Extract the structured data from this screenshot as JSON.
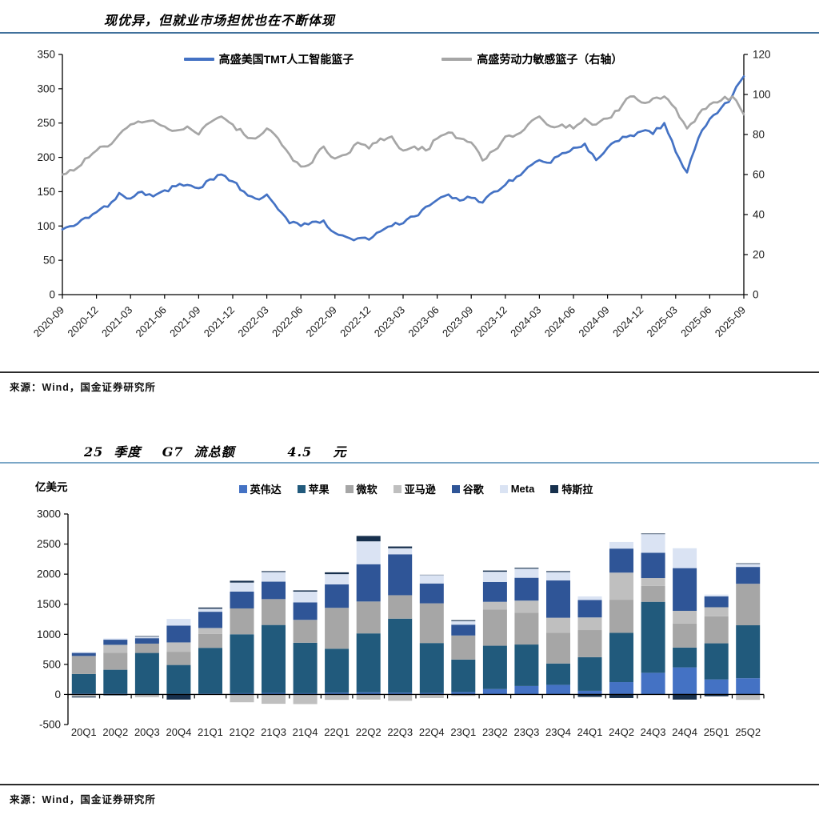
{
  "page": {
    "title1": "现优异，但就业市场担忧也在不断体现",
    "title2": "25  季度    G7  流总额          4.5    元",
    "source1": "来源：Wind，国金证券研究所",
    "source2": "来源：Wind，国金证券研究所",
    "accent_color": "#41719C"
  },
  "chart_data": [
    {
      "type": "line",
      "legend_position": "top",
      "grid": false,
      "x_months": 61,
      "x_tick_every": 3,
      "x_tick_labels": [
        "2020-09",
        "2020-12",
        "2021-03",
        "2021-06",
        "2021-09",
        "2021-12",
        "2022-03",
        "2022-06",
        "2022-09",
        "2022-12",
        "2023-03",
        "2023-06",
        "2023-09",
        "2023-12",
        "2024-03",
        "2024-06",
        "2024-09",
        "2024-12",
        "2025-03",
        "2025-06",
        "2025-09"
      ],
      "ylim_left": [
        0,
        350
      ],
      "ytick_step_left": 50,
      "ylim_right": [
        0,
        120
      ],
      "ytick_step_right": 20,
      "series": [
        {
          "name": "高盛美国TMT人工智能篮子",
          "axis": "left",
          "color": "#4472C4",
          "values": [
            95,
            100,
            112,
            120,
            128,
            148,
            140,
            150,
            143,
            152,
            158,
            160,
            155,
            168,
            175,
            165,
            150,
            140,
            146,
            124,
            104,
            100,
            106,
            108,
            90,
            84,
            82,
            80,
            92,
            100,
            104,
            114,
            128,
            138,
            146,
            137,
            141,
            134,
            150,
            160,
            172,
            186,
            196,
            192,
            206,
            214,
            220,
            196,
            214,
            224,
            232,
            238,
            234,
            250,
            208,
            178,
            228,
            256,
            272,
            290,
            318
          ]
        },
        {
          "name": "高盛劳动力敏感篮子（右轴）",
          "axis": "right",
          "color": "#A6A6A6",
          "values": [
            60,
            62,
            68,
            72,
            74,
            80,
            85,
            86,
            87,
            84,
            82,
            84,
            80,
            86,
            89,
            85,
            80,
            78,
            83,
            78,
            70,
            64,
            66,
            74,
            68,
            70,
            76,
            73,
            78,
            79,
            72,
            74,
            72,
            78,
            81,
            78,
            76,
            67,
            72,
            79,
            80,
            85,
            89,
            84,
            85,
            83,
            88,
            85,
            88,
            92,
            99,
            96,
            98,
            99,
            93,
            83,
            90,
            95,
            97,
            99,
            90
          ]
        }
      ]
    },
    {
      "type": "bar",
      "stacked": true,
      "unit_label": "亿美元",
      "legend_position": "top",
      "grid": false,
      "ylim": [
        -500,
        3000
      ],
      "ytick_step": 500,
      "categories": [
        "20Q1",
        "20Q2",
        "20Q3",
        "20Q4",
        "21Q1",
        "21Q2",
        "21Q3",
        "21Q4",
        "22Q1",
        "22Q2",
        "22Q3",
        "22Q4",
        "23Q1",
        "23Q2",
        "23Q3",
        "23Q4",
        "24Q1",
        "24Q2",
        "24Q3",
        "24Q4",
        "25Q1",
        "25Q2"
      ],
      "series": [
        {
          "name": "英伟达",
          "color": "#4472C4",
          "values": [
            15,
            15,
            10,
            10,
            15,
            20,
            25,
            20,
            30,
            35,
            30,
            25,
            40,
            90,
            140,
            160,
            60,
            205,
            360,
            450,
            250,
            270
          ]
        },
        {
          "name": "苹果",
          "color": "#215A7C",
          "values": [
            325,
            395,
            680,
            480,
            760,
            980,
            1130,
            840,
            730,
            980,
            1230,
            830,
            540,
            720,
            690,
            355,
            560,
            820,
            1180,
            330,
            600,
            880
          ]
        },
        {
          "name": "微软",
          "color": "#A6A6A6",
          "values": [
            300,
            285,
            155,
            220,
            230,
            430,
            430,
            380,
            680,
            530,
            390,
            660,
            400,
            600,
            530,
            510,
            450,
            550,
            265,
            400,
            450,
            690
          ]
        },
        {
          "name": "亚马逊",
          "color": "#BFBFBF",
          "values": [
            -35,
            130,
            -45,
            155,
            100,
            -130,
            -155,
            -160,
            -90,
            -85,
            -105,
            -60,
            -25,
            130,
            200,
            250,
            210,
            450,
            130,
            210,
            150,
            -90
          ]
        },
        {
          "name": "谷歌",
          "color": "#2F5597",
          "values": [
            50,
            85,
            90,
            280,
            270,
            280,
            290,
            290,
            390,
            620,
            680,
            330,
            180,
            330,
            380,
            620,
            290,
            400,
            420,
            710,
            180,
            280
          ]
        },
        {
          "name": "Meta",
          "color": "#DAE3F3",
          "values": [
            15,
            20,
            25,
            110,
            50,
            150,
            160,
            180,
            170,
            380,
            100,
            140,
            60,
            170,
            150,
            140,
            60,
            110,
            310,
            330,
            30,
            50
          ]
        },
        {
          "name": "特斯拉",
          "color": "#17304D",
          "values": [
            -15,
            -15,
            10,
            -85,
            20,
            30,
            15,
            20,
            30,
            90,
            30,
            5,
            15,
            20,
            15,
            15,
            -40,
            -60,
            10,
            -85,
            -30,
            10
          ]
        }
      ]
    }
  ]
}
